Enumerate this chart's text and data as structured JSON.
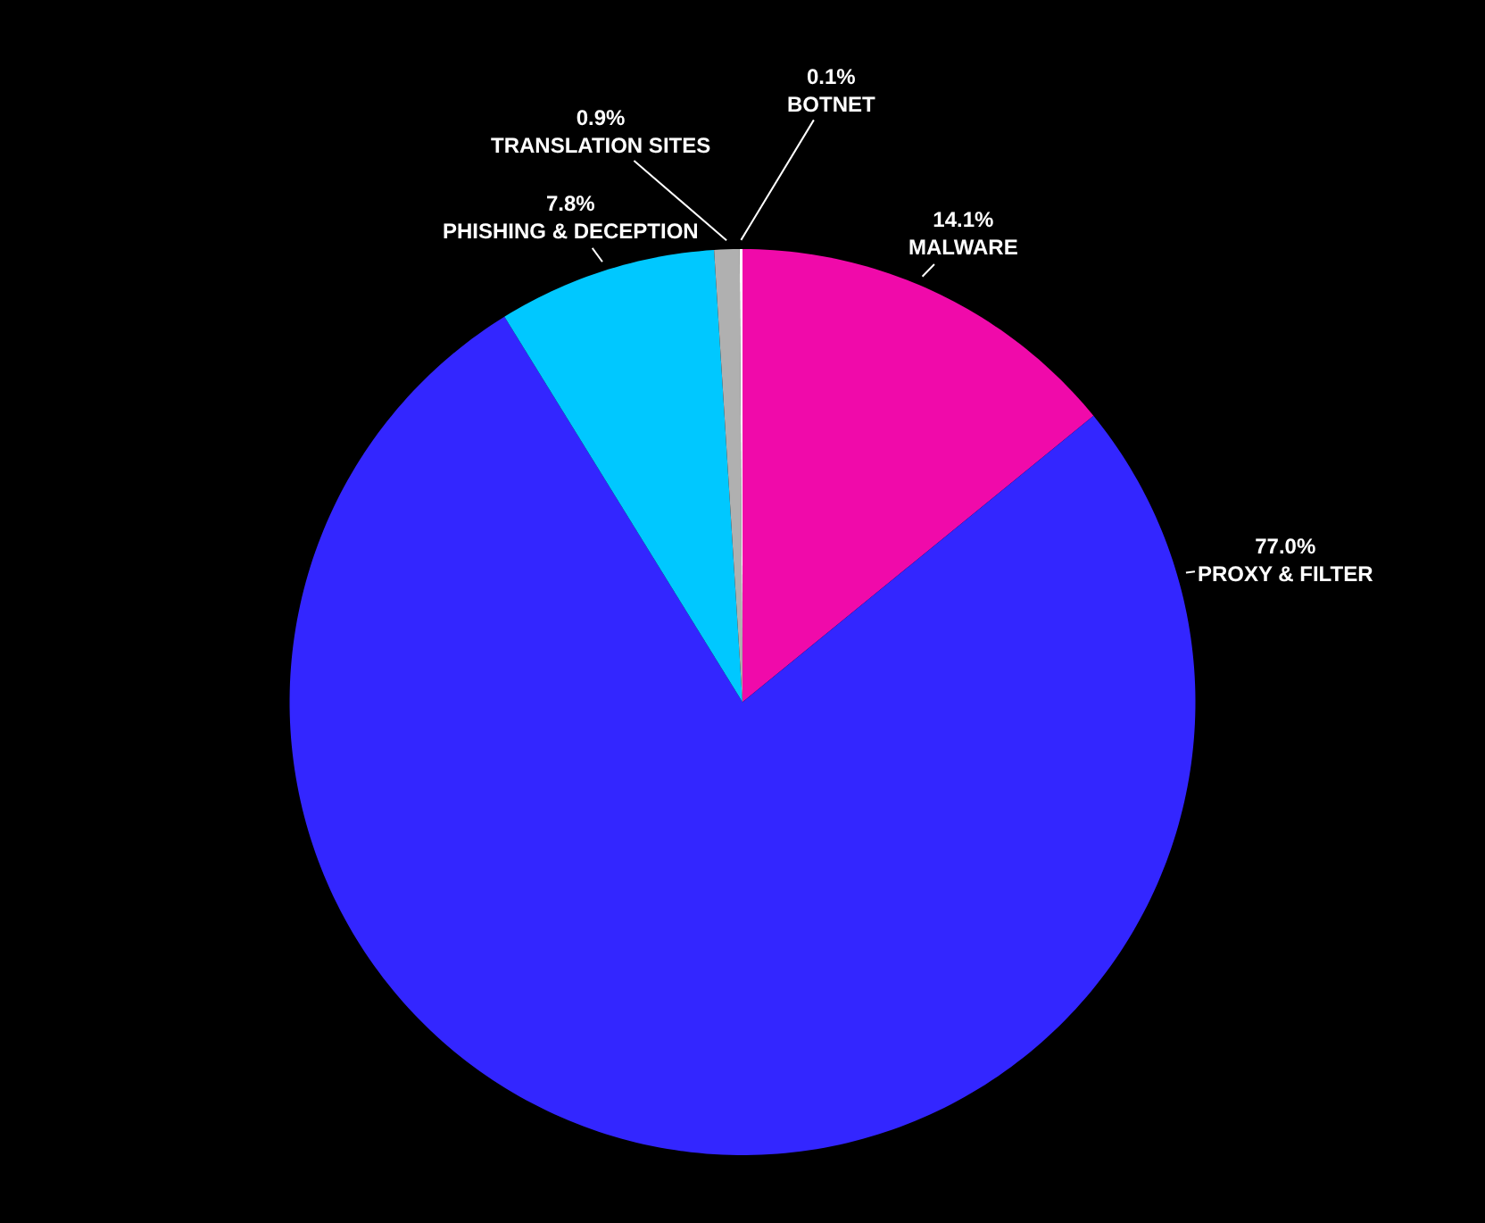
{
  "chart_data": {
    "type": "pie",
    "categories": [
      "MALWARE",
      "PROXY & FILTER",
      "PHISHING & DECEPTION",
      "TRANSLATION SITES",
      "BOTNET"
    ],
    "values": [
      14.1,
      77.0,
      7.8,
      0.9,
      0.1
    ],
    "value_labels": [
      "14.1%",
      "77.0%",
      "7.8%",
      "0.9%",
      "0.1%"
    ],
    "colors": [
      "#f00aaa",
      "#3326ff",
      "#00c8ff",
      "#b0b0b0",
      "#ffffff"
    ],
    "legend": false
  }
}
